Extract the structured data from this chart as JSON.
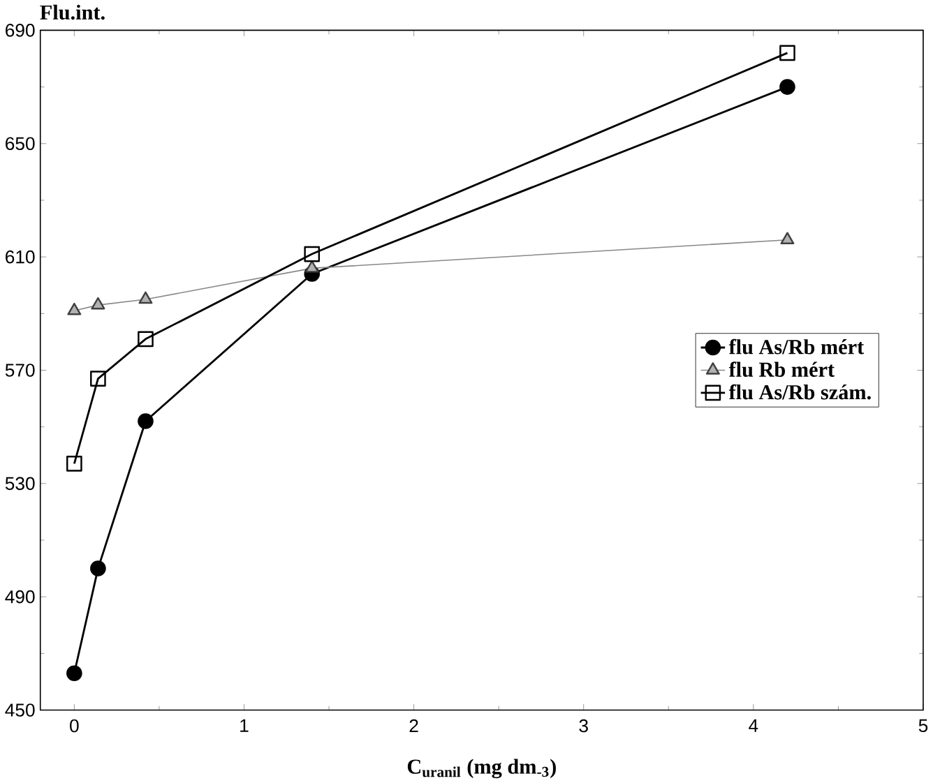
{
  "chart_data": {
    "type": "line",
    "ylabel": "Flu.int.",
    "xlabel": "C$_{uranil}$ (mg dm$_{-3}$)",
    "x": [
      0,
      0.14,
      0.42,
      1.4,
      4.2
    ],
    "series": [
      {
        "name": "flu As/Rb mért",
        "color": "#000000",
        "marker": "circle",
        "values": [
          463,
          500,
          552,
          604,
          670
        ]
      },
      {
        "name": "flu Rb mért",
        "color": "#888888",
        "marker": "triangle",
        "values": [
          591,
          593,
          595,
          606,
          616
        ]
      },
      {
        "name": "flu As/Rb szám.",
        "color": "#000000",
        "marker": "square",
        "values": [
          537,
          567,
          581,
          611,
          682
        ]
      }
    ],
    "xlim": [
      -0.2,
      5
    ],
    "ylim": [
      450,
      690
    ],
    "xticks": [
      0,
      1,
      2,
      3,
      4,
      5
    ],
    "yticks": [
      450,
      490,
      530,
      570,
      610,
      650,
      690
    ],
    "grid": false,
    "legend": "right",
    "line_style": "solid"
  }
}
